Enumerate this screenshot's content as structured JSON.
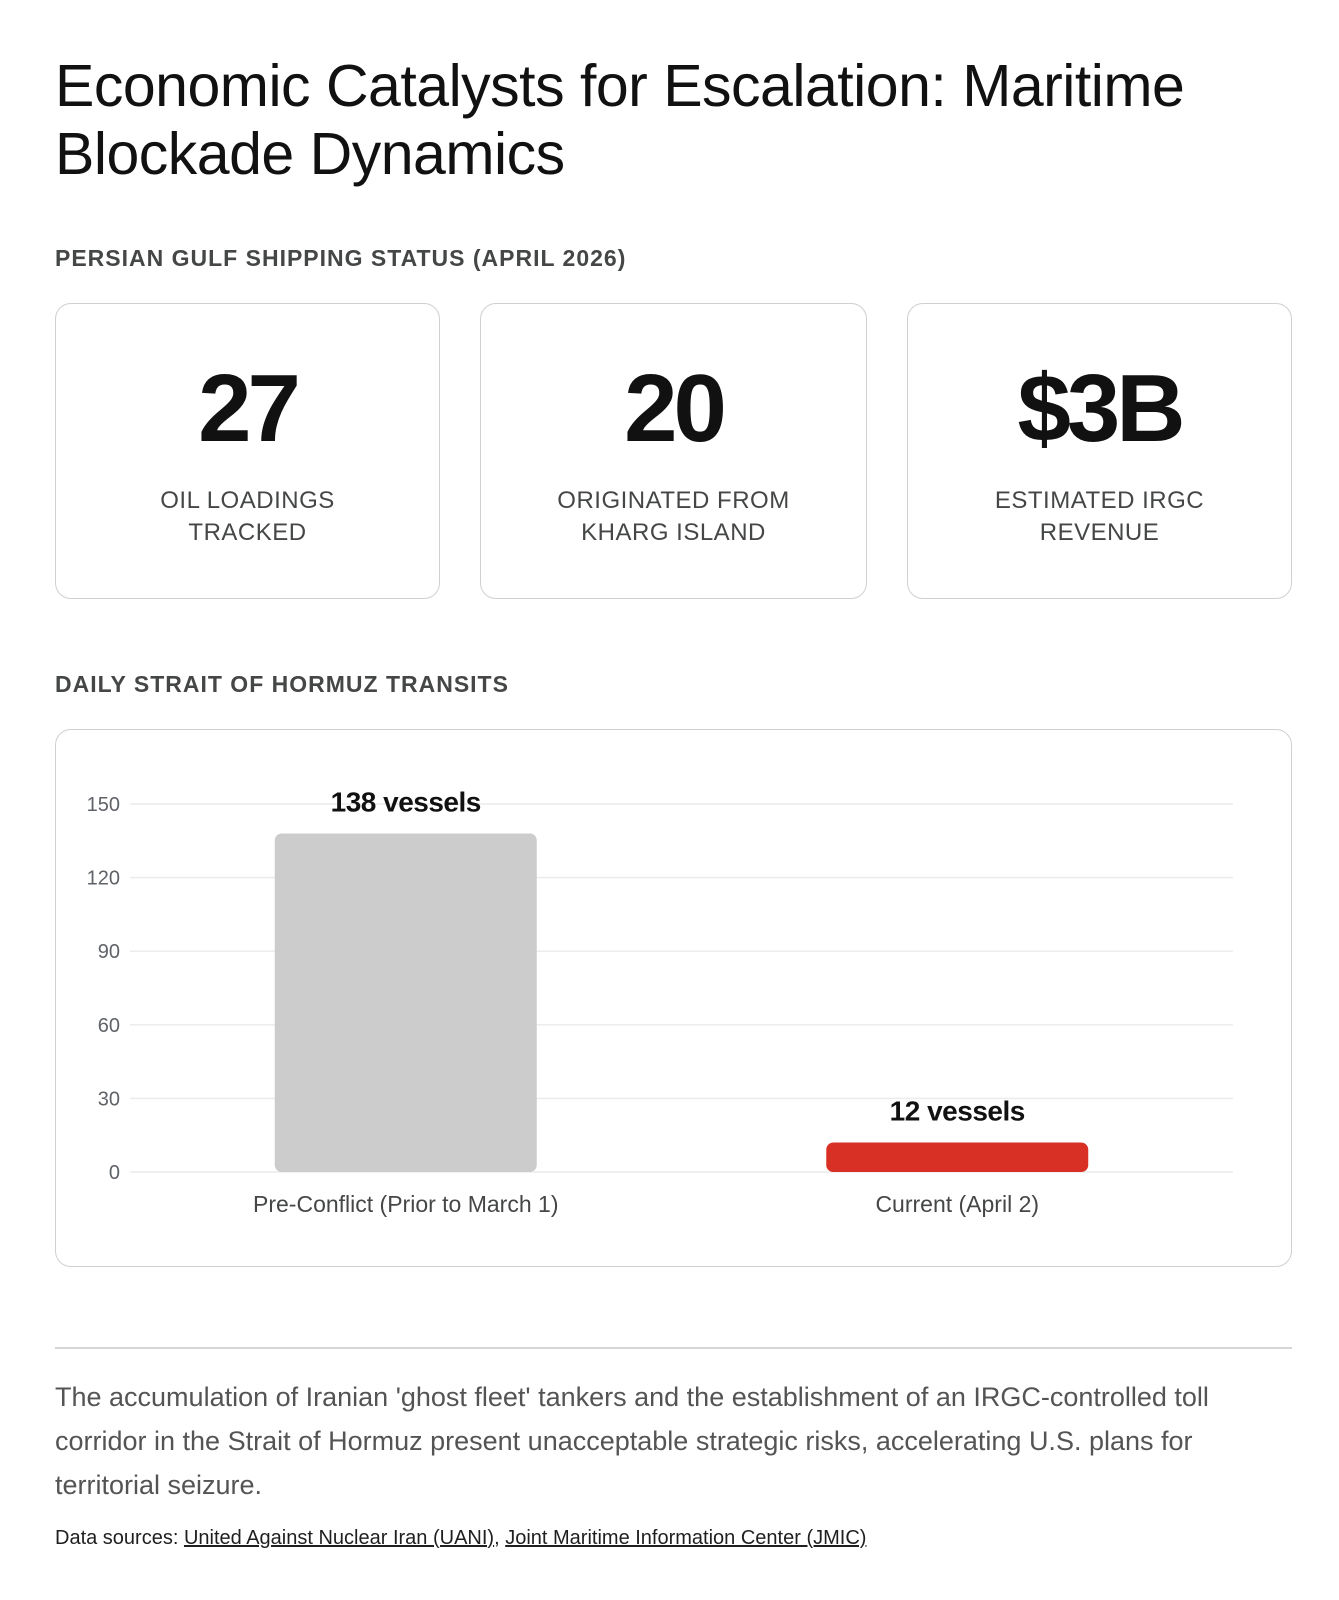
{
  "title": "Economic Catalysts for Escalation: Maritime Blockade Dynamics",
  "stats_section": {
    "heading": "PERSIAN GULF SHIPPING STATUS (APRIL 2026)",
    "cards": [
      {
        "value": "27",
        "label": "OIL LOADINGS TRACKED"
      },
      {
        "value": "20",
        "label": "ORIGINATED FROM KHARG ISLAND"
      },
      {
        "value": "$3B",
        "label": "ESTIMATED IRGC REVENUE"
      }
    ]
  },
  "chart_section": {
    "heading": "DAILY STRAIT OF HORMUZ TRANSITS"
  },
  "chart_data": {
    "type": "bar",
    "categories": [
      "Pre-Conflict (Prior to March 1)",
      "Current (April 2)"
    ],
    "values": [
      138,
      12
    ],
    "data_labels": [
      "138 vessels",
      "12 vessels"
    ],
    "bar_colors": [
      "#cccccc",
      "#d93025"
    ],
    "ylim": [
      0,
      150
    ],
    "yticks": [
      0,
      30,
      60,
      90,
      120,
      150
    ],
    "grid": true,
    "legend": "none"
  },
  "summary": "The accumulation of Iranian 'ghost fleet' tankers and the establishment of an IRGC-controlled toll corridor in the Strait of Hormuz present unacceptable strategic risks, accelerating U.S. plans for territorial seizure.",
  "sources": {
    "prefix": "Data sources: ",
    "links": [
      {
        "text": "United Against Nuclear Iran (UANI)"
      },
      {
        "text": "Joint Maritime Information Center (JMIC)"
      }
    ],
    "separator": ", "
  },
  "colors": {
    "text": "#111111",
    "muted": "#444746",
    "border": "#d0d0d0",
    "bar_baseline": "#cccccc",
    "bar_current": "#d93025"
  }
}
